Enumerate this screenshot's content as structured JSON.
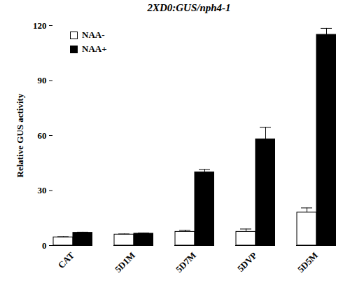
{
  "chart_data": {
    "type": "bar",
    "title": "2XD0:GUS/nph4-1",
    "y_label": "Relative GUS activity",
    "categories": [
      "CAT",
      "5D1M",
      "5D7M",
      "5DVP",
      "5D5M"
    ],
    "series": [
      {
        "name": "NAA-",
        "color": "#ffffff",
        "values": [
          4.5,
          6,
          7.5,
          7.5,
          18
        ],
        "errors": [
          0.3,
          0.3,
          0.8,
          1.5,
          2.5
        ]
      },
      {
        "name": "NAA+",
        "color": "#000000",
        "values": [
          7,
          6.5,
          40,
          58,
          115
        ],
        "errors": [
          0.3,
          0.3,
          1.5,
          6.5,
          3.5
        ]
      }
    ],
    "ylim": [
      0,
      120
    ],
    "yticks": [
      0,
      30,
      60,
      90,
      120
    ],
    "grid": false,
    "legend": "top-left"
  }
}
